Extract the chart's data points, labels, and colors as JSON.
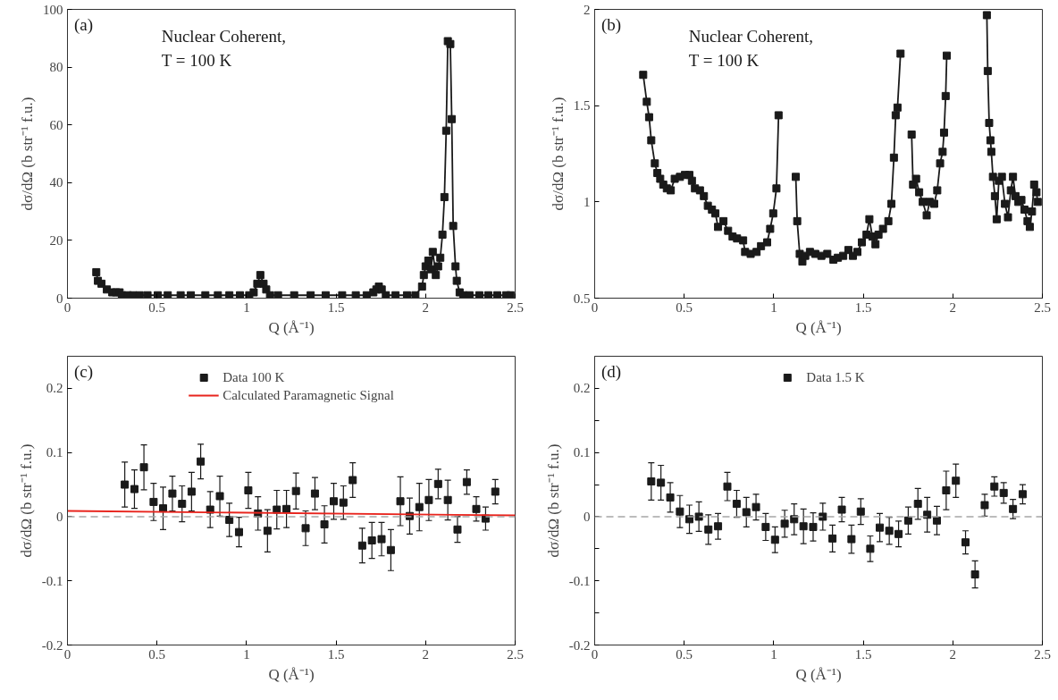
{
  "chart_data": [
    {
      "type": "line",
      "marker": "square",
      "line_style": "solid",
      "xlabel": "Q (Å⁻¹)",
      "ylabel": "dσ/dΩ (b str⁻¹ f.u.)",
      "annotations": [
        "(a)",
        "Nuclear Coherent,",
        "T = 100 K"
      ],
      "xlim": [
        0,
        2.5
      ],
      "ylim": [
        0,
        100
      ],
      "xticks": [
        0,
        0.5,
        1,
        1.5,
        2,
        2.5
      ],
      "yticks": [
        0,
        20,
        40,
        60,
        80,
        100
      ],
      "series": [
        {
          "color": "#1a1a1a",
          "x": [
            0.161,
            0.17,
            0.19,
            0.22,
            0.25,
            0.271,
            0.291,
            0.304,
            0.336,
            0.366,
            0.403,
            0.447,
            0.504,
            0.56,
            0.632,
            0.689,
            0.77,
            0.84,
            0.904,
            0.963,
            1.015,
            1.04,
            1.06,
            1.077,
            1.095,
            1.11,
            1.131,
            1.176,
            1.266,
            1.358,
            1.442,
            1.534,
            1.61,
            1.671,
            1.708,
            1.725,
            1.739,
            1.755,
            1.778,
            1.832,
            1.896,
            1.943,
            1.98,
            1.99,
            2.0,
            2.015,
            2.03,
            2.04,
            2.057,
            2.07,
            2.082,
            2.094,
            2.105,
            2.115,
            2.124,
            2.138,
            2.146,
            2.154,
            2.167,
            2.174,
            2.19,
            2.21,
            2.245,
            2.3,
            2.35,
            2.4,
            2.45,
            2.474
          ],
          "values": [
            9,
            6,
            5,
            3,
            2,
            2,
            2,
            1,
            1,
            1,
            1,
            1,
            1,
            1,
            1,
            1,
            1,
            1,
            1,
            1,
            1,
            2,
            5,
            8,
            5,
            3,
            1,
            1,
            1,
            1,
            1,
            1,
            1,
            1,
            2,
            3,
            4,
            3,
            1,
            1,
            1,
            1,
            4,
            8,
            11,
            13,
            10,
            16,
            8,
            11,
            14,
            22,
            35,
            58,
            89,
            88,
            62,
            25,
            11,
            6,
            2,
            1,
            1,
            1,
            1,
            1,
            1,
            1
          ]
        }
      ]
    },
    {
      "type": "line",
      "marker": "square",
      "line_style": "solid",
      "xlabel": "Q (Å⁻¹)",
      "ylabel": "dσ/dΩ (b str⁻¹ f.u.)",
      "annotations": [
        "(b)",
        "Nuclear Coherent,",
        "T = 100 K"
      ],
      "xlim": [
        0,
        2.5
      ],
      "ylim": [
        0.5,
        2
      ],
      "xticks": [
        0,
        0.5,
        1,
        1.5,
        2,
        2.5
      ],
      "yticks": [
        0.5,
        1,
        1.5,
        2
      ],
      "series": [
        {
          "color": "#1a1a1a",
          "x": [
            0.271,
            0.291,
            0.304,
            0.316,
            0.336,
            0.35,
            0.366,
            0.383,
            0.403,
            0.425,
            0.447,
            0.476,
            0.504,
            0.529,
            0.543,
            0.56,
            0.588,
            0.61,
            0.632,
            0.655,
            0.674,
            0.689,
            0.719,
            0.745,
            0.77,
            0.795,
            0.829,
            0.84,
            0.871,
            0.904,
            0.929,
            0.963,
            0.98,
            0.997,
            1.015,
            1.027,
            1.075,
            1.123,
            1.131,
            1.145,
            1.16,
            1.176,
            1.202,
            1.232,
            1.266,
            1.299,
            1.333,
            1.358,
            1.388,
            1.417,
            1.442,
            1.467,
            1.492,
            1.518,
            1.534,
            1.551,
            1.568,
            1.585,
            1.61,
            1.64,
            1.657,
            1.671,
            1.681,
            1.691,
            1.708,
            1.74,
            1.77,
            1.778,
            1.795,
            1.812,
            1.832,
            1.854,
            1.871,
            1.896,
            1.913,
            1.929,
            1.943,
            1.951,
            1.96,
            1.966,
            2.1,
            2.19,
            2.195,
            2.203,
            2.21,
            2.215,
            2.224,
            2.235,
            2.245,
            2.257,
            2.274,
            2.291,
            2.308,
            2.324,
            2.336,
            2.35,
            2.366,
            2.383,
            2.4,
            2.417,
            2.43,
            2.442,
            2.454,
            2.467,
            2.474
          ],
          "values": [
            1.66,
            1.52,
            1.44,
            1.32,
            1.2,
            1.15,
            1.12,
            1.09,
            1.07,
            1.06,
            1.12,
            1.13,
            1.14,
            1.14,
            1.11,
            1.07,
            1.06,
            1.03,
            0.98,
            0.96,
            0.94,
            0.87,
            0.9,
            0.85,
            0.82,
            0.81,
            0.8,
            0.74,
            0.73,
            0.74,
            0.77,
            0.79,
            0.86,
            0.94,
            1.07,
            1.45,
            null,
            1.13,
            0.9,
            0.73,
            0.69,
            0.72,
            0.74,
            0.73,
            0.72,
            0.73,
            0.7,
            0.71,
            0.72,
            0.75,
            0.72,
            0.74,
            0.79,
            0.83,
            0.91,
            0.82,
            0.78,
            0.83,
            0.86,
            0.9,
            0.99,
            1.23,
            1.45,
            1.49,
            1.77,
            null,
            1.35,
            1.09,
            1.12,
            1.05,
            1,
            0.93,
            1,
            0.99,
            1.06,
            1.2,
            1.26,
            1.36,
            1.55,
            1.76,
            null,
            1.97,
            1.68,
            1.41,
            1.32,
            1.26,
            1.13,
            1.03,
            0.91,
            1.11,
            1.13,
            0.99,
            0.92,
            1.06,
            1.13,
            1.03,
            1,
            1.01,
            0.96,
            0.9,
            0.87,
            0.95,
            1.09,
            1.05,
            1
          ]
        }
      ]
    },
    {
      "type": "scatter",
      "marker": "square",
      "xlabel": "Q (Å⁻¹)",
      "ylabel": "dσ/dΩ (b str⁻¹ f.u.)",
      "annotations": [
        "(c)"
      ],
      "xlim": [
        0,
        2.5
      ],
      "ylim": [
        -0.2,
        0.25
      ],
      "xticks": [
        0,
        0.5,
        1,
        1.5,
        2,
        2.5
      ],
      "yticks": [
        -0.2,
        -0.1,
        0,
        0.1,
        0.2
      ],
      "legend": "top",
      "ref_lines": [
        {
          "axis": "y",
          "value": 0,
          "color": "#a6a6a6",
          "line_style": "dashed"
        }
      ],
      "series": [
        {
          "name": "Data 100 K",
          "color": "#1a1a1a",
          "x": [
            0.32,
            0.374,
            0.427,
            0.481,
            0.534,
            0.586,
            0.64,
            0.693,
            0.744,
            0.797,
            0.851,
            0.904,
            0.958,
            1.01,
            1.064,
            1.117,
            1.169,
            1.223,
            1.276,
            1.33,
            1.382,
            1.435,
            1.487,
            1.541,
            1.593,
            1.646,
            1.7,
            1.754,
            1.806,
            1.859,
            1.911,
            1.965,
            2.018,
            2.07,
            2.124,
            2.178,
            2.23,
            2.283,
            2.335,
            2.389
          ],
          "values": [
            0.05,
            0.043,
            0.077,
            0.023,
            0.013,
            0.036,
            0.02,
            0.039,
            0.086,
            0.011,
            0.032,
            -0.005,
            -0.024,
            0.041,
            0.005,
            -0.022,
            0.011,
            0.012,
            0.04,
            -0.018,
            0.036,
            -0.012,
            0.024,
            0.022,
            0.057,
            -0.045,
            -0.037,
            -0.035,
            -0.052,
            0.024,
            0.001,
            0.015,
            0.026,
            0.051,
            0.026,
            -0.02,
            0.054,
            0.012,
            -0.003,
            0.039
          ],
          "errors": [
            0.035,
            0.03,
            0.035,
            0.029,
            0.033,
            0.027,
            0.028,
            0.03,
            0.027,
            0.028,
            0.031,
            0.026,
            0.023,
            0.028,
            0.026,
            0.033,
            0.03,
            0.029,
            0.028,
            0.027,
            0.025,
            0.029,
            0.028,
            0.026,
            0.027,
            0.027,
            0.028,
            0.026,
            0.032,
            0.038,
            0.028,
            0.037,
            0.032,
            0.023,
            0.031,
            0.02,
            0.019,
            0.019,
            0.018,
            0.019
          ]
        },
        {
          "name": "Calculated Paramagnetic Signal",
          "type": "line",
          "marker": "none",
          "color": "#e8241d",
          "x": [
            0,
            2.5
          ],
          "values": [
            0.009,
            0.002
          ]
        }
      ]
    },
    {
      "type": "scatter",
      "marker": "square",
      "xlabel": "Q (Å⁻¹)",
      "ylabel": "dσ/dΩ (b str⁻¹ f.u.)",
      "annotations": [
        "(d)"
      ],
      "xlim": [
        0,
        2.5
      ],
      "ylim": [
        -0.2,
        0.25
      ],
      "xticks": [
        0,
        0.5,
        1,
        1.5,
        2,
        2.5
      ],
      "yticks": [
        -0.2,
        {
          "value": -0.15,
          "label": null
        },
        -0.1,
        {
          "value": -0.05,
          "label": null
        },
        0,
        {
          "value": 0.05,
          "label": null
        },
        0.1,
        {
          "value": 0.15,
          "label": null
        },
        0.2
      ],
      "legend": "top",
      "ref_lines": [
        {
          "axis": "y",
          "value": 0,
          "color": "#a6a6a6",
          "line_style": "dashed"
        }
      ],
      "series": [
        {
          "name": "Data 1.5 K",
          "color": "#1a1a1a",
          "x": [
            0.316,
            0.37,
            0.422,
            0.476,
            0.529,
            0.582,
            0.635,
            0.689,
            0.741,
            0.793,
            0.847,
            0.901,
            0.955,
            1.007,
            1.061,
            1.114,
            1.166,
            1.22,
            1.274,
            1.328,
            1.38,
            1.434,
            1.486,
            1.539,
            1.592,
            1.645,
            1.697,
            1.751,
            1.805,
            1.857,
            1.911,
            1.963,
            2.017,
            2.071,
            2.124,
            2.178,
            2.232,
            2.284,
            2.336,
            2.39
          ],
          "values": [
            0.055,
            0.053,
            0.03,
            0.008,
            -0.004,
            0,
            -0.02,
            -0.015,
            0.047,
            0.02,
            0.007,
            0.015,
            -0.016,
            -0.036,
            -0.011,
            -0.004,
            -0.015,
            -0.016,
            0,
            -0.034,
            0.011,
            -0.035,
            0.008,
            -0.05,
            -0.017,
            -0.022,
            -0.027,
            -0.006,
            0.02,
            0.003,
            -0.006,
            0.041,
            0.056,
            -0.04,
            -0.09,
            0.018,
            0.047,
            0.037,
            0.012,
            0.035
          ],
          "errors": [
            0.029,
            0.027,
            0.023,
            0.025,
            0.022,
            0.023,
            0.023,
            0.02,
            0.022,
            0.021,
            0.023,
            0.02,
            0.021,
            0.02,
            0.021,
            0.024,
            0.027,
            0.022,
            0.021,
            0.021,
            0.019,
            0.022,
            0.02,
            0.02,
            0.022,
            0.021,
            0.02,
            0.021,
            0.024,
            0.027,
            0.022,
            0.03,
            0.026,
            0.018,
            0.021,
            0.017,
            0.015,
            0.016,
            0.015,
            0.015
          ]
        }
      ]
    }
  ]
}
